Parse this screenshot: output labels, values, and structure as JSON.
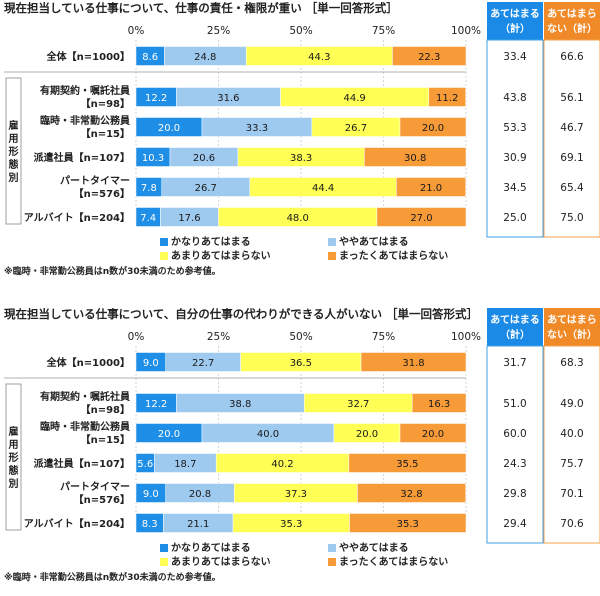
{
  "colors": {
    "very": "#1e8ee6",
    "somewhat": "#9fcaf0",
    "not_much": "#ffff55",
    "not_at_all": "#f79a38",
    "sum_agree_border": "#3fa0e6",
    "sum_agree_head": "#1a8ae6",
    "sum_disagree_border": "#f4a14a",
    "sum_disagree_head": "#f08a28"
  },
  "chart_data": [
    {
      "type": "bar",
      "orientation": "horizontal-stacked-100",
      "title": "現在担当している仕事について、仕事の責任・権限が重い",
      "title_tag": "［単一回答形式］",
      "ticks": [
        "0%",
        "25%",
        "50%",
        "75%",
        "100%"
      ],
      "group_label": "雇用形態別",
      "categories": [
        {
          "line1": "全体【n=1000】",
          "line2": ""
        },
        {
          "line1": "有期契約・嘱託社員",
          "line2": "【n=98】"
        },
        {
          "line1": "臨時・非常勤公務員",
          "line2": "【n=15】"
        },
        {
          "line1": "派遣社員【n=107】",
          "line2": ""
        },
        {
          "line1": "パートタイマー",
          "line2": "【n=576】"
        },
        {
          "line1": "アルバイト【n=204】",
          "line2": ""
        }
      ],
      "series": [
        {
          "name": "かなりあてはまる",
          "values": [
            8.6,
            12.2,
            20.0,
            10.3,
            7.8,
            7.4
          ]
        },
        {
          "name": "ややあてはまる",
          "values": [
            24.8,
            31.6,
            33.3,
            20.6,
            26.7,
            17.6
          ]
        },
        {
          "name": "あまりあてはまらない",
          "values": [
            44.3,
            44.9,
            26.7,
            38.3,
            44.4,
            48.0
          ]
        },
        {
          "name": "まったくあてはまらない",
          "values": [
            22.3,
            11.2,
            20.0,
            30.8,
            21.0,
            27.0
          ]
        }
      ],
      "summary_headers": [
        [
          "あてはまる",
          "（計）"
        ],
        [
          "あてはまら",
          "ない（計）"
        ]
      ],
      "summary": {
        "agree": [
          33.4,
          43.8,
          53.3,
          30.9,
          34.5,
          25.0
        ],
        "disagree": [
          66.6,
          56.1,
          46.7,
          69.1,
          65.4,
          75.0
        ]
      },
      "footnote": "※臨時・非常勤公務員はn数が30未満のため参考値。"
    },
    {
      "type": "bar",
      "orientation": "horizontal-stacked-100",
      "title": "現在担当している仕事について、自分の仕事の代わりができる人がいない",
      "title_tag": "［単一回答形式］",
      "ticks": [
        "0%",
        "25%",
        "50%",
        "75%",
        "100%"
      ],
      "group_label": "雇用形態別",
      "categories": [
        {
          "line1": "全体【n=1000】",
          "line2": ""
        },
        {
          "line1": "有期契約・嘱託社員",
          "line2": "【n=98】"
        },
        {
          "line1": "臨時・非常勤公務員",
          "line2": "【n=15】"
        },
        {
          "line1": "派遣社員【n=107】",
          "line2": ""
        },
        {
          "line1": "パートタイマー",
          "line2": "【n=576】"
        },
        {
          "line1": "アルバイト【n=204】",
          "line2": ""
        }
      ],
      "series": [
        {
          "name": "かなりあてはまる",
          "values": [
            9.0,
            12.2,
            20.0,
            5.6,
            9.0,
            8.3
          ]
        },
        {
          "name": "ややあてはまる",
          "values": [
            22.7,
            38.8,
            40.0,
            18.7,
            20.8,
            21.1
          ]
        },
        {
          "name": "あまりあてはまらない",
          "values": [
            36.5,
            32.7,
            20.0,
            40.2,
            37.3,
            35.3
          ]
        },
        {
          "name": "まったくあてはまらない",
          "values": [
            31.8,
            16.3,
            20.0,
            35.5,
            32.8,
            35.3
          ]
        }
      ],
      "summary_headers": [
        [
          "あてはまる",
          "（計）"
        ],
        [
          "あてはまら",
          "ない（計）"
        ]
      ],
      "summary": {
        "agree": [
          31.7,
          51.0,
          60.0,
          24.3,
          29.8,
          29.4
        ],
        "disagree": [
          68.3,
          49.0,
          40.0,
          75.7,
          70.1,
          70.6
        ]
      },
      "footnote": "※臨時・非常勤公務員はn数が30未満のため参考値。"
    }
  ]
}
